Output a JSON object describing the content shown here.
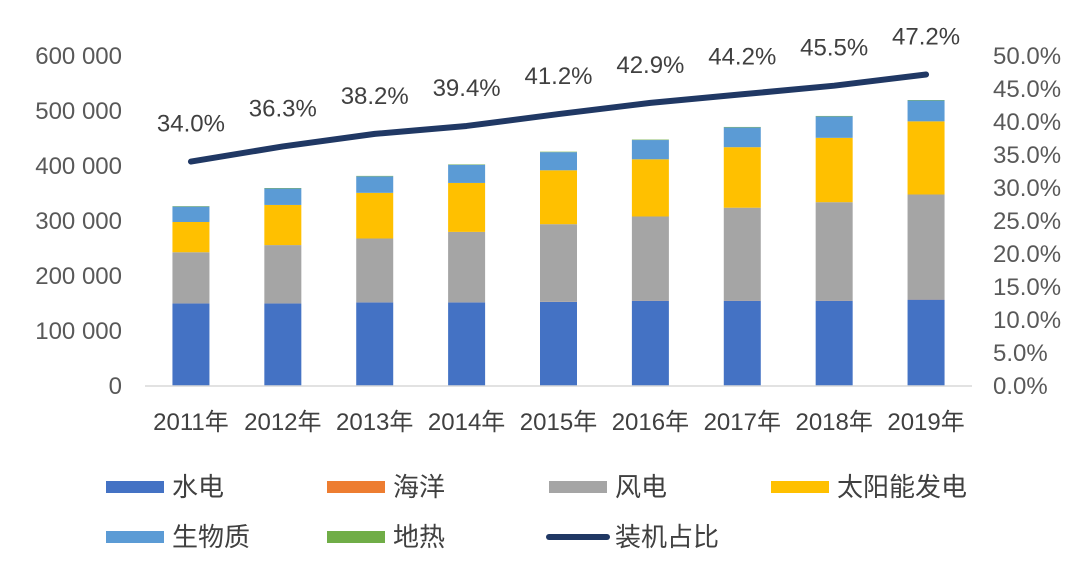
{
  "chart_data": {
    "type": "bar",
    "stacked": true,
    "categories": [
      "2011年",
      "2012年",
      "2013年",
      "2014年",
      "2015年",
      "2016年",
      "2017年",
      "2018年",
      "2019年"
    ],
    "series": [
      {
        "name": "水电",
        "color": "#4472C4",
        "values": [
          150000,
          150000,
          152000,
          152000,
          153000,
          155000,
          155000,
          155000,
          157000
        ]
      },
      {
        "name": "海洋",
        "color": "#ED7D31",
        "values": [
          200,
          200,
          200,
          200,
          200,
          200,
          200,
          200,
          200
        ]
      },
      {
        "name": "风电",
        "color": "#A5A5A5",
        "values": [
          93000,
          106000,
          116000,
          128000,
          141000,
          153000,
          169000,
          179000,
          191000
        ]
      },
      {
        "name": "太阳能发电",
        "color": "#FFC000",
        "values": [
          55000,
          73000,
          83000,
          89000,
          98000,
          104000,
          110000,
          117000,
          133000
        ]
      },
      {
        "name": "生物质",
        "color": "#5B9BD5",
        "values": [
          28000,
          30000,
          30000,
          33000,
          33000,
          35000,
          36000,
          39000,
          38000
        ]
      },
      {
        "name": "地热",
        "color": "#70AD47",
        "values": [
          800,
          800,
          800,
          800,
          800,
          800,
          800,
          800,
          800
        ]
      }
    ],
    "line_series": {
      "name": "装机占比",
      "color": "#203864",
      "axis": "right",
      "values": [
        34.0,
        36.3,
        38.2,
        39.4,
        41.2,
        42.9,
        44.2,
        45.5,
        47.2
      ],
      "labels": [
        "34.0%",
        "36.3%",
        "38.2%",
        "39.4%",
        "41.2%",
        "42.9%",
        "44.2%",
        "45.5%",
        "47.2%"
      ]
    },
    "y_left": {
      "min": 0,
      "max": 600000,
      "ticks": [
        0,
        100000,
        200000,
        300000,
        400000,
        500000,
        600000
      ],
      "tick_labels": [
        "0",
        "100 000",
        "200 000",
        "300 000",
        "400 000",
        "500 000",
        "600 000"
      ]
    },
    "y_right": {
      "min": 0,
      "max": 50,
      "ticks": [
        0,
        5,
        10,
        15,
        20,
        25,
        30,
        35,
        40,
        45,
        50
      ],
      "tick_labels": [
        "0.0%",
        "5.0%",
        "10.0%",
        "15.0%",
        "20.0%",
        "25.0%",
        "30.0%",
        "35.0%",
        "40.0%",
        "45.0%",
        "50.0%"
      ]
    },
    "title": "",
    "xlabel": "",
    "ylabel": "",
    "grid": false,
    "legend": {
      "placement": "bottom",
      "items": [
        "水电",
        "海洋",
        "风电",
        "太阳能发电",
        "生物质",
        "地热",
        "装机占比"
      ]
    }
  }
}
